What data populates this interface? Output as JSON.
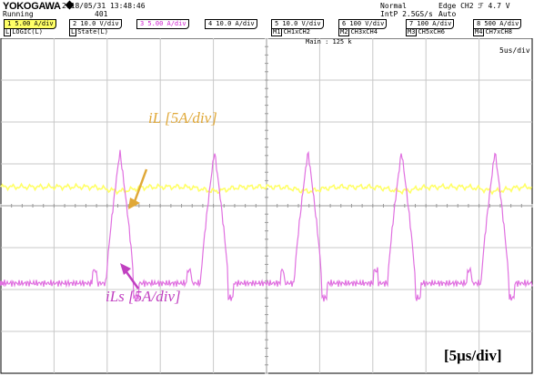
{
  "header": {
    "brand": "YOKOGAWA",
    "status": "Running",
    "datetime": "2018/05/31 13:48:46",
    "acq_count": "401",
    "acq_mode": "Normal",
    "sample_rate": "IntP 2.5GS/s",
    "trigger": "Edge CH2 ℱ 4.7 V",
    "trigger_mode": "Auto"
  },
  "channels": [
    {
      "label": "1 5.00 A/div",
      "color": "#ffff66"
    },
    {
      "label": "2 10.0 V/div"
    },
    {
      "label": "3 5.00 A/div",
      "color": "#d020d0"
    },
    {
      "label": "4 10.0 A/div"
    },
    {
      "label": "5 10.0 V/div"
    },
    {
      "label": "6 100 V/div"
    },
    {
      "label": "7 100 A/div"
    },
    {
      "label": "8 500 A/div"
    }
  ],
  "sources": [
    {
      "tag": "L",
      "text": "LOGIC(L)"
    },
    {
      "tag": "L",
      "text": "State(L)"
    },
    {
      "tag": "M1",
      "text": "CH1xCH2"
    },
    {
      "tag": "M2",
      "text": "CH3xCH4"
    },
    {
      "tag": "M3",
      "text": "CH5xCH6"
    },
    {
      "tag": "M4",
      "text": "CH7xCH8"
    }
  ],
  "display": {
    "main_label": "Main : 125 k",
    "time_div": "5us/div"
  },
  "annotations": {
    "il_label": "iL [5A/div]",
    "ils_label": "iLs [5A/div]",
    "timebase_label": "[5μs/div]"
  },
  "colors": {
    "ch1_trace": "#ffff66",
    "ch3_trace": "#e070e0",
    "il_annotation": "#e0a838",
    "ils_annotation": "#c040c0"
  },
  "waveforms": {
    "ch1_level_div": 0.45,
    "ch3_baseline_div": -1.85,
    "ch3_peak_div": 1.3,
    "ch3_pulse_times_us": [
      11.2,
      20.1,
      28.9,
      37.7,
      46.5
    ]
  }
}
